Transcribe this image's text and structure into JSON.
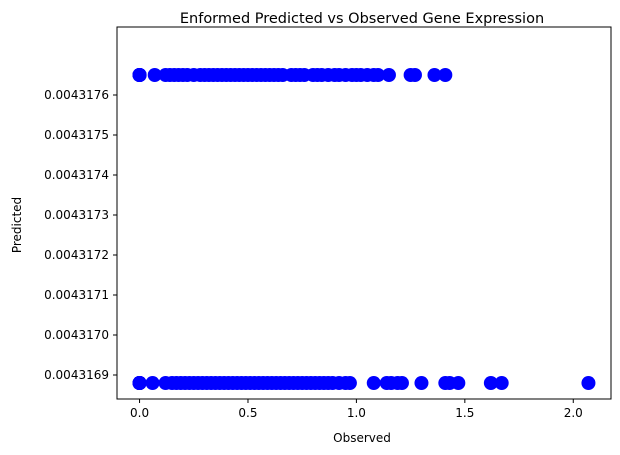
{
  "chart_data": {
    "type": "scatter",
    "title": "Enformed Predicted vs Observed Gene Expression",
    "xlabel": "Observed",
    "ylabel": "Predicted",
    "xlim": [
      -0.104,
      2.174
    ],
    "ylim": [
      0.00431684,
      0.00431777
    ],
    "x_ticks": [
      {
        "value": 0.0,
        "label": "0.0"
      },
      {
        "value": 0.5,
        "label": "0.5"
      },
      {
        "value": 1.0,
        "label": "1.0"
      },
      {
        "value": 1.5,
        "label": "1.5"
      },
      {
        "value": 2.0,
        "label": "2.0"
      }
    ],
    "y_ticks": [
      {
        "value": 0.0043169,
        "label": "0.0043169"
      },
      {
        "value": 0.004317,
        "label": "0.0043170"
      },
      {
        "value": 0.0043171,
        "label": "0.0043171"
      },
      {
        "value": 0.0043172,
        "label": "0.0043172"
      },
      {
        "value": 0.0043173,
        "label": "0.0043173"
      },
      {
        "value": 0.0043174,
        "label": "0.0043174"
      },
      {
        "value": 0.0043175,
        "label": "0.0043175"
      },
      {
        "value": 0.0043176,
        "label": "0.0043176"
      }
    ],
    "marker_color": "#0000ff",
    "grid": false,
    "series": [
      {
        "y": 0.00431765,
        "x": [
          0.0,
          0.0,
          0.0,
          0.0,
          0.0,
          0.0,
          0.07,
          0.12,
          0.14,
          0.16,
          0.18,
          0.2,
          0.22,
          0.25,
          0.28,
          0.3,
          0.32,
          0.34,
          0.36,
          0.38,
          0.4,
          0.42,
          0.44,
          0.46,
          0.48,
          0.5,
          0.52,
          0.54,
          0.56,
          0.58,
          0.6,
          0.62,
          0.64,
          0.66,
          0.7,
          0.72,
          0.74,
          0.76,
          0.8,
          0.82,
          0.84,
          0.87,
          0.9,
          0.92,
          0.95,
          0.98,
          1.0,
          1.02,
          1.05,
          1.08,
          1.1,
          1.15,
          1.25,
          1.27,
          1.36,
          1.41
        ]
      },
      {
        "y": 0.00431688,
        "x": [
          0.0,
          0.0,
          0.0,
          0.0,
          0.0,
          0.0,
          0.0,
          0.06,
          0.12,
          0.15,
          0.17,
          0.19,
          0.21,
          0.23,
          0.25,
          0.27,
          0.29,
          0.31,
          0.33,
          0.35,
          0.37,
          0.39,
          0.41,
          0.43,
          0.45,
          0.47,
          0.49,
          0.51,
          0.53,
          0.55,
          0.57,
          0.59,
          0.61,
          0.63,
          0.65,
          0.67,
          0.69,
          0.71,
          0.73,
          0.75,
          0.77,
          0.79,
          0.81,
          0.83,
          0.85,
          0.87,
          0.89,
          0.92,
          0.95,
          0.97,
          1.08,
          1.14,
          1.16,
          1.19,
          1.21,
          1.3,
          1.41,
          1.43,
          1.47,
          1.62,
          1.67,
          2.07
        ]
      }
    ]
  }
}
